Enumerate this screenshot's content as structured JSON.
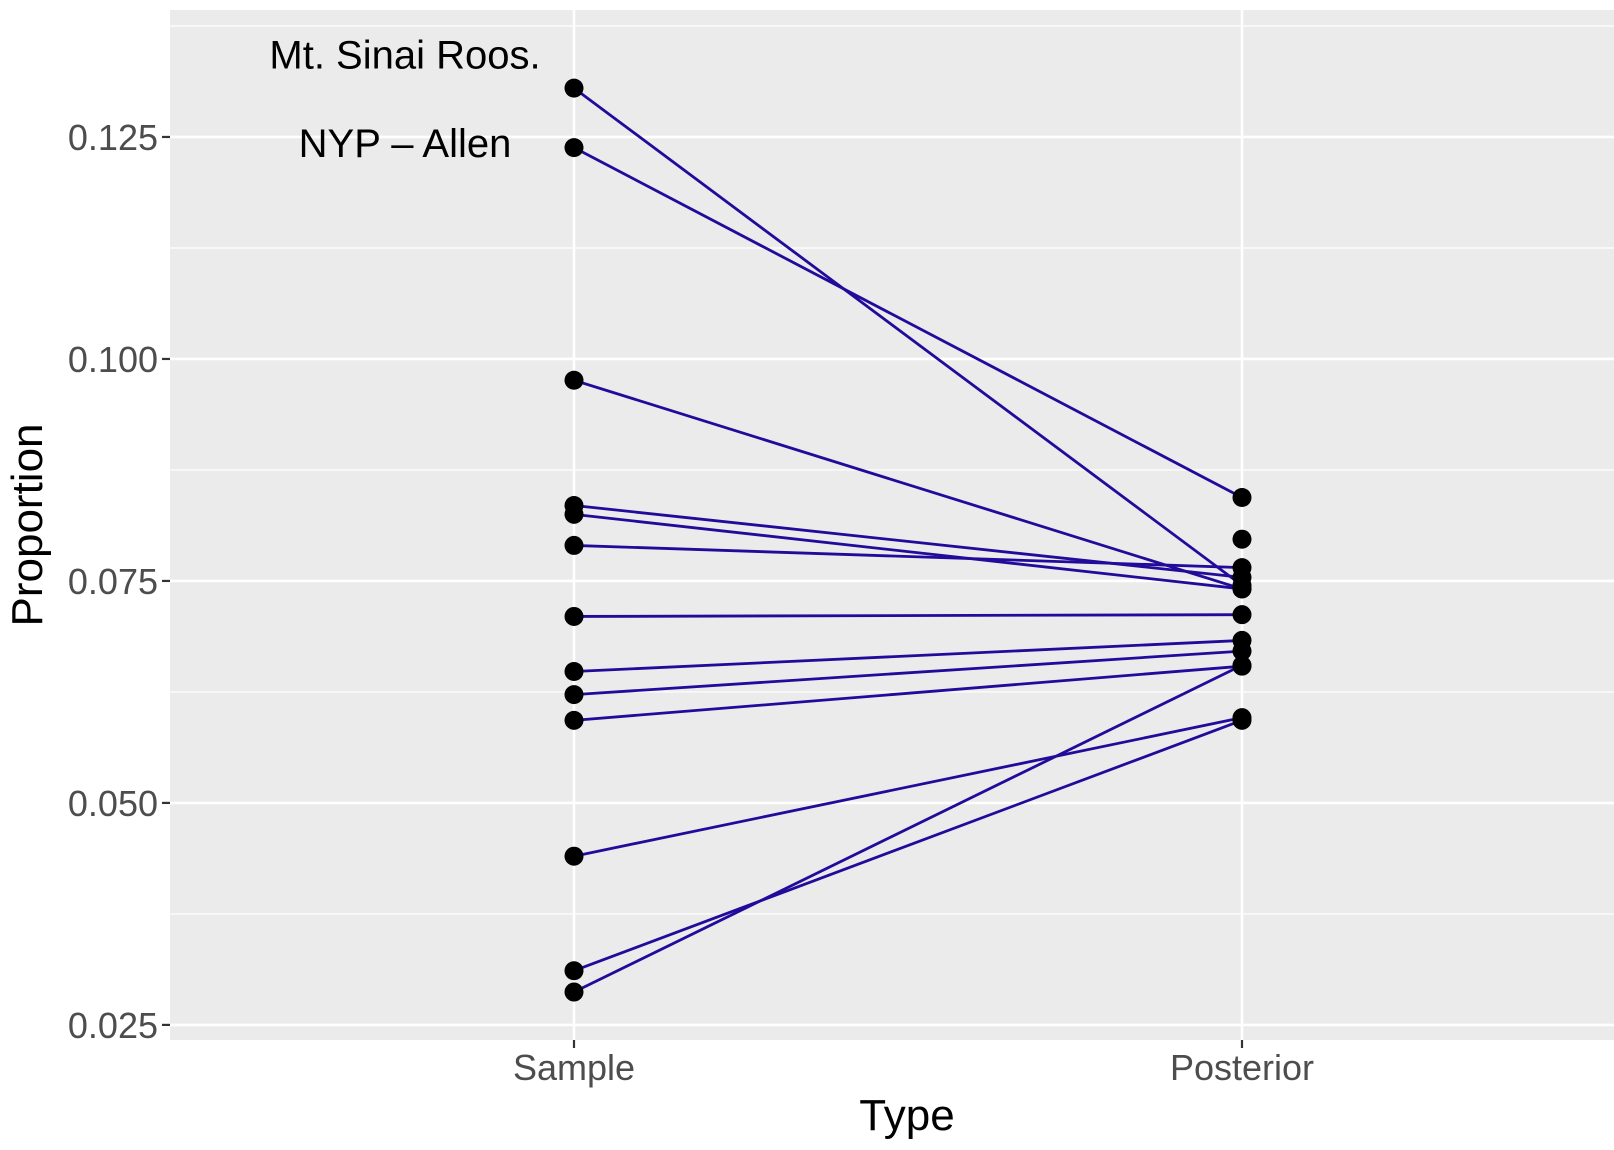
{
  "chart_data": {
    "type": "line",
    "title": "",
    "xlabel": "Type",
    "ylabel": "Proportion",
    "categories": [
      "Sample",
      "Posterior"
    ],
    "yticks": [
      0.025,
      0.05,
      0.075,
      0.1,
      0.125
    ],
    "ytick_labels": [
      "0.025",
      "0.050",
      "0.075",
      "0.100",
      "0.125"
    ],
    "ylim": [
      0.0233,
      0.1393
    ],
    "grid": true,
    "pairs": [
      {
        "sample": 0.1305,
        "posterior": 0.0745
      },
      {
        "sample": 0.1238,
        "posterior": 0.0844
      },
      {
        "sample": 0.0976,
        "posterior": 0.0741
      },
      {
        "sample": 0.0835,
        "posterior": 0.0754
      },
      {
        "sample": 0.0825,
        "posterior": 0.0741
      },
      {
        "sample": 0.079,
        "posterior": 0.0765
      },
      {
        "sample": 0.071,
        "posterior": 0.0712
      },
      {
        "sample": 0.0648,
        "posterior": 0.0683
      },
      {
        "sample": 0.0622,
        "posterior": 0.0671
      },
      {
        "sample": 0.0593,
        "posterior": 0.0654
      },
      {
        "sample": 0.044,
        "posterior": 0.0596
      },
      {
        "sample": 0.0311,
        "posterior": 0.0593
      },
      {
        "sample": 0.0287,
        "posterior": 0.0655
      }
    ],
    "extra_posterior_points": [
      0.0797
    ],
    "annotations": [
      {
        "text": "Mt. Sinai Roos.",
        "y": 0.1343
      },
      {
        "text": "NYP – Allen",
        "y": 0.1243
      }
    ],
    "line_color": "#220b9b",
    "point_color": "#000000",
    "panel_color": "#ebebeb",
    "grid_color": "#ffffff"
  }
}
